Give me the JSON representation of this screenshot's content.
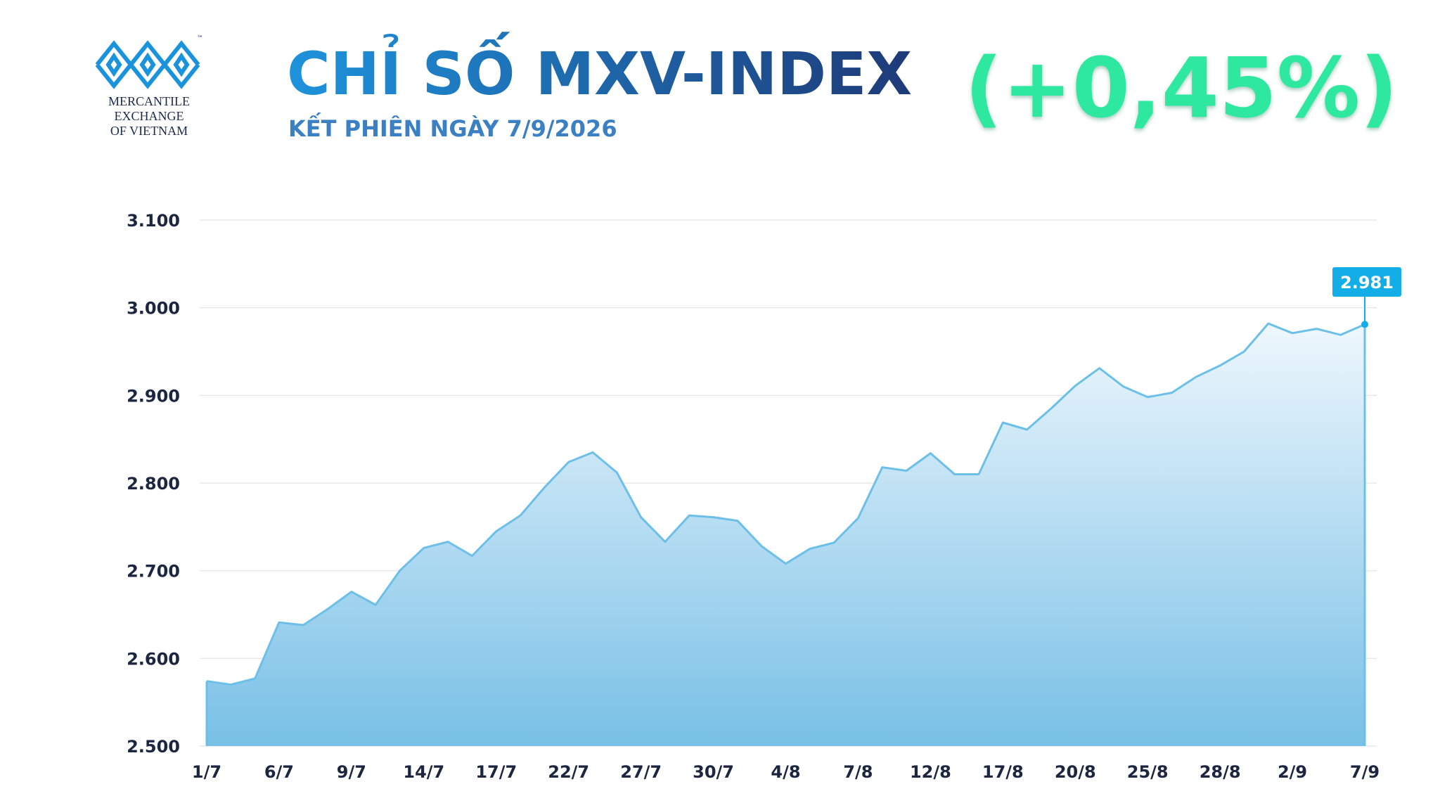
{
  "logo": {
    "lines": [
      "MERCANTILE",
      "EXCHANGE",
      "OF VIETNAM"
    ],
    "trademark": "™"
  },
  "chart_data": {
    "type": "area",
    "title": "CHỈ SỐ MXV-INDEX",
    "subtitle": "KẾT PHIÊN NGÀY 7/9/2026",
    "change": "(+0,45%)",
    "categories": [
      "1/7",
      null,
      null,
      "6/7",
      null,
      null,
      "9/7",
      null,
      null,
      "14/7",
      null,
      null,
      "17/7",
      null,
      null,
      "22/7",
      null,
      null,
      "27/7",
      null,
      null,
      "30/7",
      null,
      null,
      "4/8",
      null,
      null,
      "7/8",
      null,
      null,
      "12/8",
      null,
      null,
      "17/8",
      null,
      null,
      "20/8",
      null,
      null,
      "25/8",
      null,
      null,
      "28/8",
      null,
      null,
      "2/9",
      null,
      null,
      "7/9"
    ],
    "values": [
      2574,
      2570,
      2577,
      2641,
      2638,
      2656,
      2676,
      2661,
      2700,
      2726,
      2733,
      2717,
      2745,
      2763,
      2795,
      2824,
      2835,
      2812,
      2761,
      2733,
      2763,
      2761,
      2757,
      2728,
      2708,
      2725,
      2732,
      2760,
      2818,
      2814,
      2834,
      2810,
      2810,
      2869,
      2861,
      2885,
      2911,
      2931,
      2910,
      2898,
      2903,
      2921,
      2934,
      2950,
      2982,
      2971,
      2976,
      2969,
      2981
    ],
    "value_labels": [
      null,
      null,
      null,
      null,
      null,
      null,
      null,
      null,
      null,
      null,
      null,
      null,
      null,
      null,
      null,
      null,
      null,
      null,
      null,
      null,
      null,
      null,
      null,
      null,
      null,
      null,
      null,
      null,
      null,
      null,
      null,
      null,
      null,
      null,
      null,
      null,
      null,
      null,
      null,
      null,
      null,
      null,
      null,
      null,
      null,
      null,
      null,
      null,
      "2.981"
    ],
    "color": "#6cc0e8",
    "ylim": [
      2500,
      3100
    ],
    "yticks": [
      {
        "value": 2500,
        "label": "2.500"
      },
      {
        "value": 2600,
        "label": "2.600"
      },
      {
        "value": 2700,
        "label": "2.700"
      },
      {
        "value": 2800,
        "label": "2.800"
      },
      {
        "value": 2900,
        "label": "2.900"
      },
      {
        "value": 3000,
        "label": "3.000"
      },
      {
        "value": 3100,
        "label": "3.100"
      }
    ],
    "grid": true
  }
}
